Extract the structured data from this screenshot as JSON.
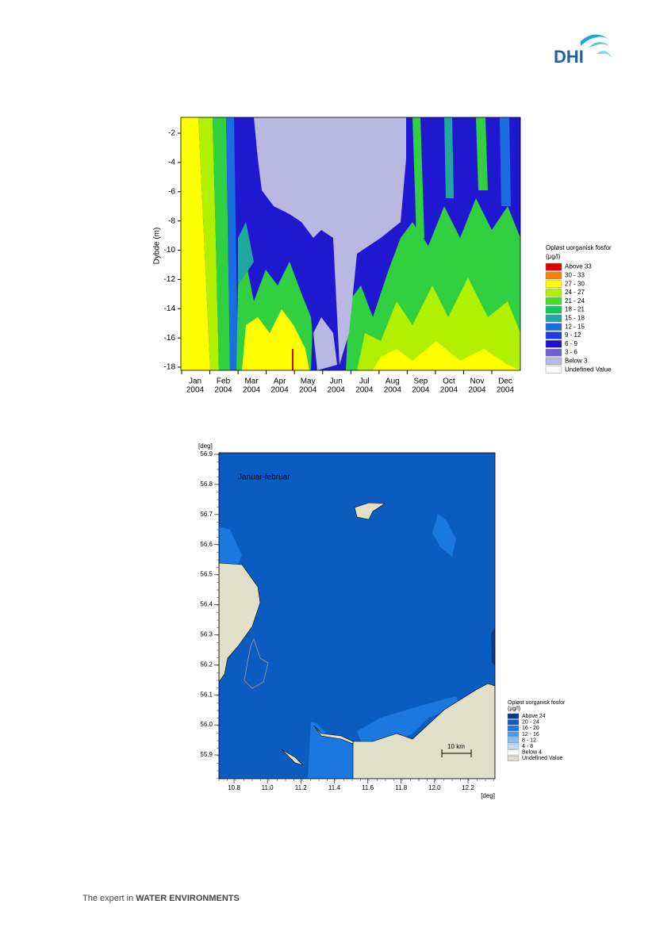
{
  "header": {
    "logo": "DHI"
  },
  "figure1": {
    "y_axis_label": "Dybde (m)",
    "y_ticks": [
      "-2",
      "-4",
      "-6",
      "-8",
      "-10",
      "-12",
      "-14",
      "-16",
      "-18"
    ],
    "x_ticks": [
      {
        "month": "Jan",
        "year": "2004"
      },
      {
        "month": "Feb",
        "year": "2004"
      },
      {
        "month": "Mar",
        "year": "2004"
      },
      {
        "month": "Apr",
        "year": "2004"
      },
      {
        "month": "May",
        "year": "2004"
      },
      {
        "month": "Jun",
        "year": "2004"
      },
      {
        "month": "Jul",
        "year": "2004"
      },
      {
        "month": "Aug",
        "year": "2004"
      },
      {
        "month": "Sep",
        "year": "2004"
      },
      {
        "month": "Oct",
        "year": "2004"
      },
      {
        "month": "Nov",
        "year": "2004"
      },
      {
        "month": "Dec",
        "year": "2004"
      }
    ],
    "legend": {
      "title": "Opløst uorganisk fosfor",
      "unit": "(µg/l)",
      "items": [
        {
          "label": "Above 33",
          "color": "#e00000"
        },
        {
          "label": "30 - 33",
          "color": "#ff8000"
        },
        {
          "label": "27 - 30",
          "color": "#ffff00"
        },
        {
          "label": "24 - 27",
          "color": "#b0f000"
        },
        {
          "label": "21 - 24",
          "color": "#40e020"
        },
        {
          "label": "18 - 21",
          "color": "#10c860"
        },
        {
          "label": "15 - 18",
          "color": "#20a8a0"
        },
        {
          "label": "12 - 15",
          "color": "#1a6ee0"
        },
        {
          "label": "9 - 12",
          "color": "#1c3ce8"
        },
        {
          "label": "6 - 9",
          "color": "#2010d0"
        },
        {
          "label": "3 - 6",
          "color": "#7060d0"
        },
        {
          "label": "Below 3",
          "color": "#b8b8e0"
        },
        {
          "label": "Undefined Value",
          "color": "#ffffff"
        }
      ]
    }
  },
  "figure2": {
    "y_unit": "[deg]",
    "x_unit": "[deg]",
    "y_ticks": [
      "56.9",
      "56.8",
      "56.7",
      "56.6",
      "56.5",
      "56.4",
      "56.3",
      "56.2",
      "56.1",
      "56.0",
      "55.9"
    ],
    "x_ticks": [
      "10.8",
      "11.0",
      "11.2",
      "11.4",
      "11.6",
      "11.8",
      "12.0",
      "12.2"
    ],
    "annotation": "Januar-februar",
    "scale_bar": "10 km",
    "legend": {
      "title": "Opløst uorganisk fosfor",
      "unit": "(µg/l)",
      "items": [
        {
          "label": "Above 24",
          "color": "#083a8c"
        },
        {
          "label": "20 - 24",
          "color": "#0a5cc0"
        },
        {
          "label": "16 - 20",
          "color": "#1a78e0"
        },
        {
          "label": "12 - 16",
          "color": "#4898f0"
        },
        {
          "label": "8 - 12",
          "color": "#88bef0"
        },
        {
          "label": "4 - 8",
          "color": "#c4dcf8"
        },
        {
          "label": "Below 4",
          "color": "#ffffff"
        },
        {
          "label": "Undefined Value",
          "color": "#e0dfc8"
        }
      ]
    }
  },
  "footer": {
    "tagline_prefix": "The expert in",
    "tagline_emphasis": "WATER ENVIRONMENTS"
  }
}
